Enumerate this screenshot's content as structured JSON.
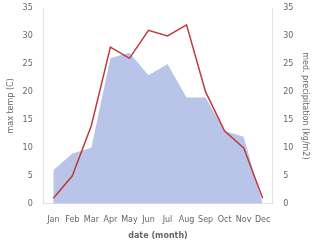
{
  "chart_data": {
    "type": "line",
    "categories": [
      "Jan",
      "Feb",
      "Mar",
      "Apr",
      "May",
      "Jun",
      "Jul",
      "Aug",
      "Sep",
      "Oct",
      "Nov",
      "Dec"
    ],
    "series": [
      {
        "type": "area",
        "color": "#b8c4e8",
        "axis": "y2",
        "values": [
          6,
          9,
          10,
          26,
          27,
          23,
          25,
          19,
          19,
          13,
          12,
          0
        ]
      },
      {
        "type": "line",
        "color": "#c0393b",
        "values": [
          1,
          5,
          14,
          28,
          26,
          31,
          30,
          32,
          20,
          13,
          10,
          1
        ]
      }
    ],
    "xlabel": "date (month)",
    "ylabel": "max temp (C)",
    "y2label": "med. precipitation (kg/m2)",
    "ylim": [
      0,
      35
    ],
    "yticks": [
      0,
      5,
      10,
      15,
      20,
      25,
      30,
      35
    ],
    "y2lim": [
      0,
      35
    ],
    "y2ticks": [
      0,
      5,
      10,
      15,
      20,
      25,
      30,
      35
    ],
    "grid": false
  }
}
